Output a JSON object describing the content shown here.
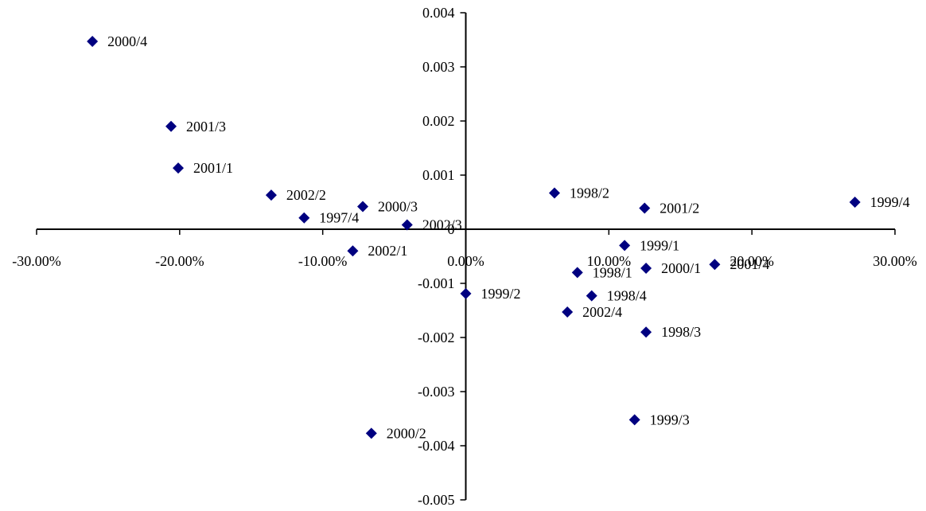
{
  "chart_data": {
    "type": "scatter",
    "title": "",
    "xlabel": "",
    "ylabel": "",
    "xlim": [
      -0.3,
      0.3
    ],
    "ylim": [
      -0.005,
      0.004
    ],
    "x_ticks": [
      {
        "value": -0.3,
        "label": "-30.00%"
      },
      {
        "value": -0.2,
        "label": "-20.00%"
      },
      {
        "value": -0.1,
        "label": "-10.00%"
      },
      {
        "value": 0.0,
        "label": "0.00%"
      },
      {
        "value": 0.1,
        "label": "10.00%"
      },
      {
        "value": 0.2,
        "label": "20.00%"
      },
      {
        "value": 0.3,
        "label": "30.00%"
      }
    ],
    "y_ticks": [
      {
        "value": 0.004,
        "label": "0.004"
      },
      {
        "value": 0.003,
        "label": "0.003"
      },
      {
        "value": 0.002,
        "label": "0.002"
      },
      {
        "value": 0.001,
        "label": "0.001"
      },
      {
        "value": 0.0,
        "label": "0"
      },
      {
        "value": -0.001,
        "label": "-0.001"
      },
      {
        "value": -0.002,
        "label": "-0.002"
      },
      {
        "value": -0.003,
        "label": "-0.003"
      },
      {
        "value": -0.004,
        "label": "-0.004"
      },
      {
        "value": -0.005,
        "label": "-0.005"
      }
    ],
    "grid": false,
    "legend": "none",
    "marker": "diamond",
    "marker_color": "#000080",
    "axis_color": "#000000",
    "points": [
      {
        "label": "2000/4",
        "x": -0.261,
        "y": 0.00347
      },
      {
        "label": "2001/3",
        "x": -0.206,
        "y": 0.0019
      },
      {
        "label": "2001/1",
        "x": -0.201,
        "y": 0.00113
      },
      {
        "label": "2002/2",
        "x": -0.136,
        "y": 0.00063
      },
      {
        "label": "1997/4",
        "x": -0.113,
        "y": 0.00021
      },
      {
        "label": "2000/3",
        "x": -0.072,
        "y": 0.00042
      },
      {
        "label": "2002/3",
        "x": -0.041,
        "y": 8e-05
      },
      {
        "label": "2002/1",
        "x": -0.079,
        "y": -0.0004
      },
      {
        "label": "1998/2",
        "x": 0.062,
        "y": 0.00067
      },
      {
        "label": "2001/2",
        "x": 0.125,
        "y": 0.00039
      },
      {
        "label": "1999/4",
        "x": 0.272,
        "y": 0.0005
      },
      {
        "label": "1999/1",
        "x": 0.111,
        "y": -0.0003
      },
      {
        "label": "2000/1",
        "x": 0.126,
        "y": -0.00072
      },
      {
        "label": "2001/4",
        "x": 0.174,
        "y": -0.00065
      },
      {
        "label": "1998/1",
        "x": 0.078,
        "y": -0.0008
      },
      {
        "label": "1998/4",
        "x": 0.088,
        "y": -0.00123
      },
      {
        "label": "1999/2",
        "x": 0.0,
        "y": -0.00119
      },
      {
        "label": "2002/4",
        "x": 0.071,
        "y": -0.00153
      },
      {
        "label": "1998/3",
        "x": 0.126,
        "y": -0.0019
      },
      {
        "label": "1999/3",
        "x": 0.118,
        "y": -0.00352
      },
      {
        "label": "2000/2",
        "x": -0.066,
        "y": -0.00377
      }
    ]
  }
}
